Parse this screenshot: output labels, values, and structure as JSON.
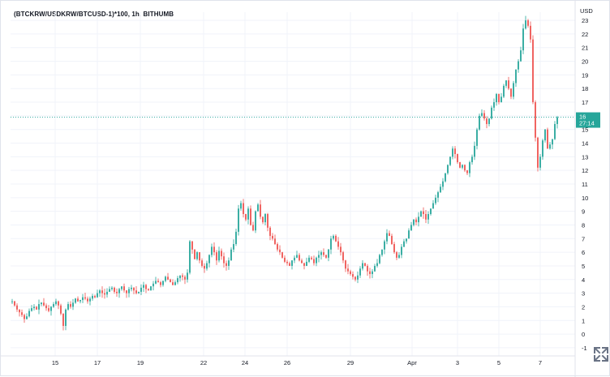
{
  "chart": {
    "title": "(BTCKRW/USDKRW/BTCUSD-1)*100, 1h, BITHUMB",
    "currency_label": "USD",
    "last_price_label": "16",
    "countdown_label": "27:14",
    "expand_icon": "fullscreen-expand-icon",
    "colors": {
      "up": "#26a69a",
      "down": "#ef5350",
      "badge": "#26a69a",
      "grid": "#f0f3fa",
      "axis_text": "#131722"
    }
  },
  "chart_data": {
    "type": "candlestick",
    "y_axis": {
      "ticks": [
        "-1",
        "0",
        "1",
        "2",
        "3",
        "4",
        "5",
        "6",
        "7",
        "8",
        "9",
        "10",
        "11",
        "12",
        "13",
        "14",
        "15",
        "16",
        "17",
        "18",
        "19",
        "20",
        "21",
        "22",
        "23"
      ],
      "range": [
        -1.6,
        23.6
      ]
    },
    "x_axis": {
      "ticks": [
        "15",
        "17",
        "19",
        "22",
        "24",
        "26",
        "29",
        "Apr",
        "3",
        "5",
        "7"
      ]
    },
    "series": [
      {
        "values": [
          2.4,
          2.1,
          1.8,
          1.6,
          1.4,
          1.1,
          1.3,
          1.7,
          1.9,
          2.0,
          1.8,
          2.2,
          2.3,
          2.1,
          1.9,
          1.7,
          2.0,
          2.2,
          2.4,
          2.1,
          1.5,
          0.6,
          1.8,
          2.2,
          2.0,
          2.3,
          2.6,
          2.4,
          2.5,
          2.7,
          2.6,
          2.4,
          2.6,
          2.8,
          2.7,
          3.0,
          3.2,
          3.0,
          2.9,
          3.1,
          3.3,
          3.4,
          3.1,
          3.0,
          3.3,
          3.5,
          3.2,
          3.0,
          3.3,
          3.4,
          3.2,
          3.0,
          3.1,
          3.4,
          3.6,
          3.3,
          3.2,
          3.5,
          3.7,
          3.9,
          3.8,
          3.6,
          3.9,
          4.2,
          4.0,
          3.8,
          3.6,
          3.8,
          4.1,
          4.3,
          4.2,
          4.0,
          4.5,
          6.8,
          6.2,
          5.5,
          6.0,
          5.4,
          5.0,
          4.8,
          5.2,
          5.8,
          6.4,
          6.0,
          5.4,
          6.1,
          5.7,
          5.2,
          5.0,
          5.4,
          6.2,
          6.6,
          7.5,
          9.2,
          9.6,
          8.8,
          8.4,
          9.2,
          8.0,
          7.6,
          9.0,
          9.5,
          8.6,
          8.2,
          8.8,
          7.8,
          7.2,
          7.0,
          6.6,
          6.2,
          6.0,
          5.6,
          5.3,
          5.2,
          5.0,
          5.4,
          5.6,
          5.8,
          5.4,
          5.2,
          5.0,
          5.3,
          5.6,
          5.5,
          5.2,
          5.6,
          5.8,
          6.0,
          5.8,
          5.6,
          6.2,
          7.0,
          7.2,
          6.8,
          6.4,
          6.0,
          5.4,
          4.8,
          4.6,
          4.4,
          4.2,
          4.0,
          4.3,
          4.8,
          5.2,
          5.0,
          4.6,
          4.4,
          4.6,
          5.0,
          5.2,
          5.8,
          6.2,
          6.8,
          7.4,
          7.2,
          6.6,
          6.0,
          5.6,
          5.8,
          6.4,
          6.8,
          7.0,
          7.6,
          8.0,
          8.4,
          8.2,
          8.6,
          9.0,
          8.8,
          8.4,
          8.8,
          9.2,
          9.6,
          10.0,
          10.4,
          10.8,
          11.2,
          11.8,
          12.4,
          13.0,
          13.6,
          13.2,
          12.6,
          12.2,
          12.4,
          12.0,
          11.8,
          12.6,
          13.0,
          13.8,
          15.0,
          16.0,
          16.2,
          15.8,
          15.4,
          15.8,
          16.6,
          17.0,
          17.6,
          17.0,
          17.4,
          18.2,
          18.6,
          18.0,
          17.4,
          18.4,
          19.4,
          20.0,
          20.8,
          22.4,
          23.0,
          22.6,
          21.6,
          17.0,
          14.4,
          12.2,
          13.0,
          14.2,
          15.0,
          13.6,
          13.9,
          14.3,
          15.4,
          15.9
        ]
      }
    ]
  }
}
